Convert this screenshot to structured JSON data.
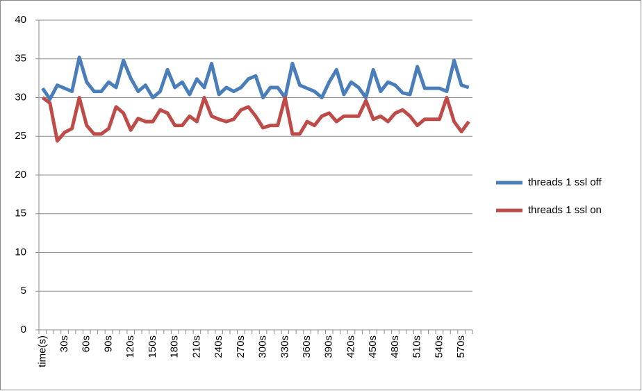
{
  "chart_data": {
    "type": "line",
    "categories": [
      "time(s)",
      null,
      null,
      "30s",
      null,
      null,
      "60s",
      null,
      null,
      "90s",
      null,
      null,
      "120s",
      null,
      null,
      "150s",
      null,
      null,
      "180s",
      null,
      null,
      "210s",
      null,
      null,
      "240s",
      null,
      null,
      "270s",
      null,
      null,
      "300s",
      null,
      null,
      "330s",
      null,
      null,
      "360s",
      null,
      null,
      "390s",
      null,
      null,
      "420s",
      null,
      null,
      "450s",
      null,
      null,
      "480s",
      null,
      null,
      "510s",
      null,
      null,
      "540s",
      null,
      null,
      "570s",
      null
    ],
    "series": [
      {
        "name": "threads 1 ssl off",
        "color": "#4a7ebb",
        "values": [
          31.2,
          29.8,
          31.6,
          31.2,
          30.8,
          35.2,
          32,
          30.8,
          30.8,
          32,
          31.3,
          34.8,
          32.5,
          30.8,
          31.6,
          30,
          30.8,
          33.6,
          31.3,
          32,
          30.4,
          32.4,
          31.3,
          34.4,
          30.4,
          31.3,
          30.8,
          31.3,
          32.4,
          32.8,
          30,
          31.3,
          31.3,
          30,
          34.4,
          31.6,
          31.2,
          30.8,
          30,
          32,
          33.6,
          30.4,
          32,
          31.3,
          30,
          33.6,
          30.8,
          32,
          31.6,
          30.6,
          30.4,
          34,
          31.2,
          31.2,
          31.2,
          30.8,
          34.8,
          31.6,
          31.3
        ]
      },
      {
        "name": "threads 1 ssl on",
        "color": "#be4b48",
        "values": [
          30,
          29.3,
          24.4,
          25.5,
          26,
          30,
          26.4,
          25.3,
          25.3,
          26,
          28.8,
          28,
          25.8,
          27.3,
          26.9,
          26.9,
          28.4,
          28,
          26.4,
          26.4,
          27.6,
          26.9,
          30,
          27.6,
          27.2,
          26.9,
          27.2,
          28.4,
          28.8,
          27.6,
          26.1,
          26.4,
          26.4,
          30,
          25.3,
          25.3,
          26.9,
          26.4,
          27.6,
          28,
          26.9,
          27.6,
          27.6,
          27.6,
          29.6,
          27.2,
          27.6,
          26.9,
          28,
          28.4,
          27.6,
          26.4,
          27.2,
          27.2,
          27.2,
          30,
          26.9,
          25.6,
          26.9
        ]
      }
    ],
    "ylim": [
      0,
      40
    ],
    "yticks": [
      0,
      5,
      10,
      15,
      20,
      25,
      30,
      35,
      40
    ],
    "grid": true,
    "legend": "right"
  }
}
